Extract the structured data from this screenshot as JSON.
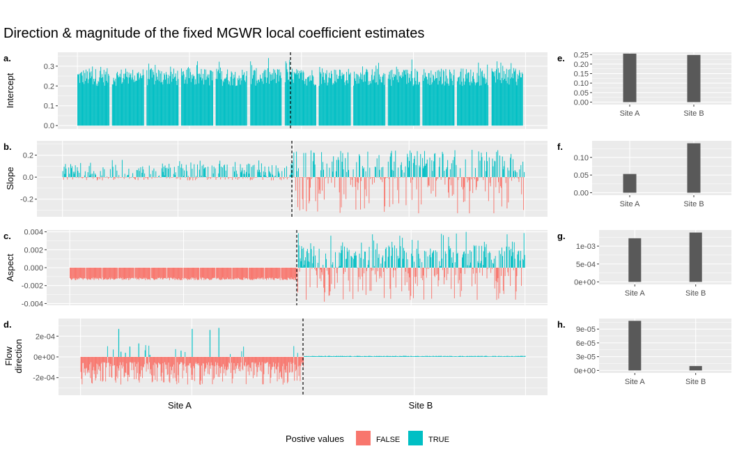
{
  "title": "Direction & magnitude of the fixed MGWR local coefficient estimates",
  "colors": {
    "false": "#F8766D",
    "true": "#00BFC4",
    "summary_bar": "#595959",
    "panel_bg": "#EBEBEB",
    "grid": "#FFFFFF"
  },
  "legend": {
    "title": "Postive values",
    "items": [
      {
        "label": "FALSE",
        "key": "false"
      },
      {
        "label": "TRUE",
        "key": "true"
      }
    ],
    "position": "bottom"
  },
  "chart_data": [
    {
      "id": "a",
      "tag": "a.",
      "type": "bar",
      "ylabel": "Intercept",
      "ylim": [
        -0.017,
        0.37
      ],
      "yticks": [
        0.0,
        0.1,
        0.2,
        0.3
      ],
      "ytick_labels": [
        "0.0",
        "0.1",
        "0.2",
        "0.3"
      ],
      "x_groups": [
        "Site A",
        "Site B"
      ],
      "x_axis_labels_shown": false,
      "site_split_fraction": 0.476,
      "description": "~700 local intercept estimates, all positive, mostly 0.20-0.35, clustered in 13 contiguous blocks",
      "series_profile": {
        "blocks": 13,
        "min": 0.18,
        "max": 0.355,
        "typical": 0.26,
        "sign": "positive"
      }
    },
    {
      "id": "b",
      "tag": "b.",
      "type": "bar",
      "ylabel": "Slope",
      "ylim": [
        -0.36,
        0.33
      ],
      "yticks": [
        -0.2,
        0.0,
        0.2
      ],
      "ytick_labels": [
        "-0.2",
        "0.0",
        "0.2"
      ],
      "x_groups": [
        "Site A",
        "Site B"
      ],
      "x_axis_labels_shown": false,
      "site_split_fraction": 0.5,
      "description": "Site A: small positive slopes (0 to ~0.2) with tiny negatives; Site B: mixed, positive up to ~0.27 and negative to ~-0.33",
      "series_profile": {
        "siteA": {
          "pos_max": 0.2,
          "neg_min": -0.03
        },
        "siteB": {
          "pos_max": 0.27,
          "neg_min": -0.34
        }
      }
    },
    {
      "id": "c",
      "tag": "c.",
      "type": "bar",
      "ylabel": "Aspect",
      "ylim": [
        -0.0042,
        0.0042
      ],
      "yticks": [
        -0.004,
        -0.002,
        0.0,
        0.002,
        0.004
      ],
      "ytick_labels": [
        "-0.004",
        "-0.002",
        "0.000",
        "0.002",
        "0.004"
      ],
      "x_groups": [
        "Site A",
        "Site B"
      ],
      "x_axis_labels_shown": false,
      "site_split_fraction": 0.5,
      "description": "Site A: uniformly negative around -0.0012 to -0.0014; Site B: mixed positives up to ~0.0042 and negatives to ~-0.0039",
      "series_profile": {
        "siteA": {
          "typical": -0.0013
        },
        "siteB": {
          "pos_max": 0.0042,
          "neg_min": -0.0039
        }
      }
    },
    {
      "id": "d",
      "tag": "d.",
      "type": "bar",
      "ylabel": "Flow direction",
      "ylim": [
        -0.00037,
        0.00037
      ],
      "yticks": [
        -0.0002,
        0.0,
        0.0002
      ],
      "ytick_labels": [
        "-2e-04",
        "0e+00",
        "2e-04"
      ],
      "x_groups": [
        "Site A",
        "Site B"
      ],
      "x_axis_labels_shown": true,
      "site_split_fraction": 0.5,
      "description": "Site A: mostly negative (to ~-3.1e-04) with a few positive spikes up to ~2.8e-04; Site B: near-zero positive values (~1e-05)",
      "series_profile": {
        "siteA": {
          "neg_min": -0.00031,
          "pos_spikes": [
            0.00027,
            5e-05,
            4e-05,
            0.0001,
            0.00013,
            2e-05,
            6e-05,
            0.00027,
            0.00026,
            0.00028
          ]
        },
        "siteB": {
          "typical": 1e-05
        }
      }
    },
    {
      "id": "e",
      "tag": "e.",
      "type": "bar",
      "categories": [
        "Site A",
        "Site B"
      ],
      "values": [
        0.255,
        0.248
      ],
      "ylim": [
        -0.013,
        0.262
      ],
      "yticks": [
        0.0,
        0.05,
        0.1,
        0.15,
        0.2,
        0.25
      ],
      "ytick_labels": [
        "0.00",
        "0.05",
        "0.10",
        "0.15",
        "0.20",
        "0.25"
      ]
    },
    {
      "id": "f",
      "tag": "f.",
      "type": "bar",
      "categories": [
        "Site A",
        "Site B"
      ],
      "values": [
        0.053,
        0.14
      ],
      "ylim": [
        -0.007,
        0.147
      ],
      "yticks": [
        0.0,
        0.05,
        0.1
      ],
      "ytick_labels": [
        "0.00",
        "0.05",
        "0.10"
      ]
    },
    {
      "id": "g",
      "tag": "g.",
      "type": "bar",
      "categories": [
        "Site A",
        "Site B"
      ],
      "values": [
        0.00122,
        0.00138
      ],
      "ylim": [
        -7e-05,
        0.00145
      ],
      "yticks": [
        0.0,
        0.0005,
        0.001
      ],
      "ytick_labels": [
        "0e+00",
        "5e-04",
        "1e-03"
      ]
    },
    {
      "id": "h",
      "tag": "h.",
      "type": "bar",
      "categories": [
        "Site A",
        "Site B"
      ],
      "values": [
        0.000108,
        9.5e-06
      ],
      "ylim": [
        -5.5e-06,
        0.000113
      ],
      "yticks": [
        0.0,
        3e-05,
        6e-05,
        9e-05
      ],
      "ytick_labels": [
        "0e+00",
        "3e-05",
        "6e-05",
        "9e-05"
      ]
    }
  ]
}
